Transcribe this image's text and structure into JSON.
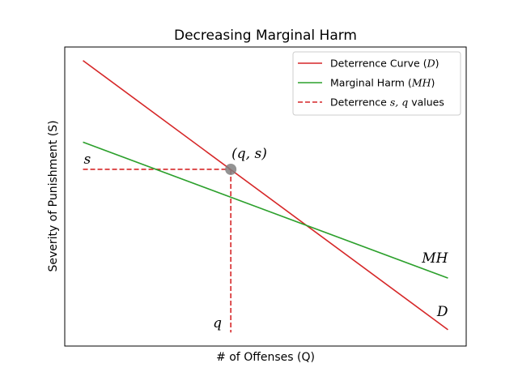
{
  "chart_data": {
    "type": "line",
    "title": "Decreasing Marginal Harm",
    "xlabel": "# of Offenses (Q)",
    "ylabel": "Severity of Punishment (S)",
    "xlim": [
      0,
      11
    ],
    "ylim": [
      0,
      11
    ],
    "grid": false,
    "legend_placement": "top-right",
    "series": [
      {
        "key": "deterrence",
        "name": "Deterrence Curve (D)",
        "legend_main": "Deterrence Curve (",
        "legend_var": "D",
        "legend_tail": ")",
        "style": "solid",
        "color": "#d62728",
        "x": [
          0.5,
          10.5
        ],
        "y": [
          10.5,
          0.6
        ]
      },
      {
        "key": "harm",
        "name": "Marginal Harm (MH)",
        "legend_main": "Marginal Harm (",
        "legend_var": "MH",
        "legend_tail": ")",
        "style": "solid",
        "color": "#2ca02c",
        "x": [
          0.5,
          10.5
        ],
        "y": [
          7.5,
          2.5
        ]
      },
      {
        "key": "values",
        "name": "Deterrence s,q values",
        "legend_main": "Deterrence ",
        "legend_var": "s, q",
        "legend_tail": " values",
        "style": "dashed",
        "color": "#d62728"
      }
    ],
    "point": {
      "x": 4.55,
      "y": 6.5,
      "label": "(q, s)",
      "color": "#808080"
    },
    "annotations": {
      "s_label": "s",
      "q_label": "q",
      "mh_label": "MH",
      "d_label": "D"
    }
  }
}
